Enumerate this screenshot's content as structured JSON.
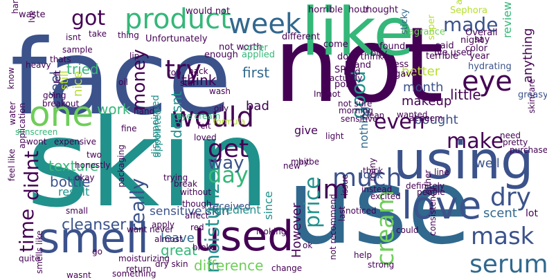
{
  "palette": {
    "dark_purple": "#440154",
    "indigo": "#3b528b",
    "blue": "#31688e",
    "teal": "#21918c",
    "green": "#35b779",
    "light_green": "#6ece58",
    "yellow_green": "#b5de2b",
    "yellow": "#d8e219"
  },
  "words": [
    {
      "text": "face",
      "color": "#3b528b"
    },
    {
      "text": "not",
      "color": "#440154"
    },
    {
      "text": "skin",
      "color": "#21918c"
    },
    {
      "text": "use",
      "color": "#31688e"
    },
    {
      "text": "like",
      "color": "#35b779"
    },
    {
      "text": "one",
      "color": "#6ece58"
    },
    {
      "text": "smell",
      "color": "#3b528b"
    },
    {
      "text": "used",
      "color": "#440154"
    },
    {
      "text": "using",
      "color": "#3b528b"
    },
    {
      "text": "product",
      "color": "#35b779"
    },
    {
      "text": "week",
      "color": "#31688e"
    },
    {
      "text": "love",
      "color": "#3b528b"
    },
    {
      "text": "would",
      "color": "#440154"
    },
    {
      "text": "really",
      "color": "#3b528b"
    },
    {
      "text": "moisturizer",
      "color": "#21918c"
    },
    {
      "text": "cream",
      "color": "#6ece58"
    },
    {
      "text": "day",
      "color": "#35b779"
    },
    {
      "text": "get",
      "color": "#440154"
    },
    {
      "text": "much",
      "color": "#3b528b"
    },
    {
      "text": "Im",
      "color": "#440154"
    },
    {
      "text": "price",
      "color": "#21918c"
    },
    {
      "text": "serum",
      "color": "#31688e"
    },
    {
      "text": "mask",
      "color": "#3b528b"
    },
    {
      "text": "dry",
      "color": "#3b528b"
    },
    {
      "text": "eye",
      "color": "#440154"
    },
    {
      "text": "made",
      "color": "#3b528b"
    },
    {
      "text": "got",
      "color": "#440154"
    },
    {
      "text": "try",
      "color": "#440154"
    },
    {
      "text": "time",
      "color": "#440154"
    },
    {
      "text": "didnt",
      "color": "#440154"
    },
    {
      "text": "money",
      "color": "#440154"
    },
    {
      "text": "even",
      "color": "#440154"
    },
    {
      "text": "make",
      "color": "#440154"
    },
    {
      "text": "good",
      "color": "#21918c"
    },
    {
      "text": "way",
      "color": "#3b528b"
    },
    {
      "text": "feel",
      "color": "#3b528b"
    },
    {
      "text": "cleanser",
      "color": "#3b528b"
    },
    {
      "text": "work",
      "color": "#35b779"
    },
    {
      "text": "tried",
      "color": "#35b779"
    },
    {
      "text": "still",
      "color": "#b5de2b"
    },
    {
      "text": "nice",
      "color": "#b5de2b"
    },
    {
      "text": "think",
      "color": "#440154"
    },
    {
      "text": "first",
      "color": "#31688e"
    },
    {
      "text": "bad",
      "color": "#440154"
    },
    {
      "text": "doesnt",
      "color": "#21918c"
    },
    {
      "text": "texture",
      "color": "#35b779"
    },
    {
      "text": "bottle",
      "color": "#3b528b"
    },
    {
      "text": "sensitive skin",
      "color": "#3b528b"
    },
    {
      "text": "leave",
      "color": "#31688e"
    },
    {
      "text": "great",
      "color": "#35b779"
    },
    {
      "text": "difference",
      "color": "#6ece58"
    },
    {
      "text": "However",
      "color": "#440154"
    },
    {
      "text": "received",
      "color": "#3b528b"
    },
    {
      "text": "month",
      "color": "#3b528b"
    },
    {
      "text": "makeup",
      "color": "#440154"
    },
    {
      "text": "nothing",
      "color": "#31688e"
    },
    {
      "text": "bought",
      "color": "#3b528b"
    },
    {
      "text": "little",
      "color": "#440154"
    },
    {
      "text": "well",
      "color": "#3b528b"
    },
    {
      "text": "scent",
      "color": "#31688e"
    },
    {
      "text": "review",
      "color": "#35b779"
    },
    {
      "text": "better",
      "color": "#b5de2b"
    },
    {
      "text": "anything",
      "color": "#440154"
    },
    {
      "text": "result",
      "color": "#21918c"
    },
    {
      "text": "ingredient",
      "color": "#21918c"
    },
    {
      "text": "look",
      "color": "#3b528b"
    },
    {
      "text": "since",
      "color": "#21918c"
    },
    {
      "text": "lot",
      "color": "#440154"
    },
    {
      "text": "give",
      "color": "#440154"
    },
    {
      "text": "disappointed",
      "color": "#21918c"
    },
    {
      "text": "appointed",
      "color": "#21918c"
    },
    {
      "text": "Unfortunately",
      "color": "#440154"
    },
    {
      "text": "not worth",
      "color": "#440154"
    },
    {
      "text": "different",
      "color": "#440154"
    },
    {
      "text": "would not",
      "color": "#440154"
    },
    {
      "text": "horrible",
      "color": "#440154"
    },
    {
      "text": "hour",
      "color": "#440154"
    },
    {
      "text": "thought",
      "color": "#440154"
    },
    {
      "text": "waste",
      "color": "#440154"
    },
    {
      "text": "Sephora",
      "color": "#b5de2b"
    },
    {
      "text": "around",
      "color": "#b5de2b"
    },
    {
      "text": "fragrance",
      "color": "#6ece58"
    },
    {
      "text": "sticky",
      "color": "#31688e"
    },
    {
      "text": "terrible",
      "color": "#440154"
    },
    {
      "text": "Overall",
      "color": "#440154"
    },
    {
      "text": "night",
      "color": "#440154"
    },
    {
      "text": "Ive used",
      "color": "#440154"
    },
    {
      "text": "color",
      "color": "#440154"
    },
    {
      "text": "year",
      "color": "#440154"
    },
    {
      "text": "say",
      "color": "#440154"
    },
    {
      "text": "said",
      "color": "#440154"
    },
    {
      "text": "come",
      "color": "#440154"
    },
    {
      "text": "found",
      "color": "#440154"
    },
    {
      "text": "buy",
      "color": "#440154"
    },
    {
      "text": "super",
      "color": "#b5de2b"
    },
    {
      "text": "dont think",
      "color": "#440154"
    },
    {
      "text": "enough",
      "color": "#440154"
    },
    {
      "text": "applied",
      "color": "#35b779"
    },
    {
      "text": "coner",
      "color": "#35b779"
    },
    {
      "text": "SPF",
      "color": "#440154"
    },
    {
      "text": "brand",
      "color": "#440154"
    },
    {
      "text": "find",
      "color": "#440154"
    },
    {
      "text": "pore",
      "color": "#440154"
    },
    {
      "text": "gave",
      "color": "#440154"
    },
    {
      "text": "less",
      "color": "#440154"
    },
    {
      "text": "hydrating",
      "color": "#3b528b"
    },
    {
      "text": "greasy",
      "color": "#3b528b"
    },
    {
      "text": "hard",
      "color": "#440154"
    },
    {
      "text": "Ive",
      "color": "#440154"
    },
    {
      "text": "isnt",
      "color": "#440154"
    },
    {
      "text": "sample",
      "color": "#440154"
    },
    {
      "text": "take",
      "color": "#440154"
    },
    {
      "text": "thing",
      "color": "#440154"
    },
    {
      "text": "heavy",
      "color": "#440154"
    },
    {
      "text": "thats",
      "color": "#440154"
    },
    {
      "text": "lip",
      "color": "#440154"
    },
    {
      "text": "top",
      "color": "#440154"
    },
    {
      "text": "back",
      "color": "#440154"
    },
    {
      "text": "star",
      "color": "#440154"
    },
    {
      "text": "oil",
      "color": "#440154"
    },
    {
      "text": "wash",
      "color": "#440154"
    },
    {
      "text": "oily",
      "color": "#440154"
    },
    {
      "text": "Im not",
      "color": "#440154"
    },
    {
      "text": "formula",
      "color": "#b5de2b"
    },
    {
      "text": "not sure",
      "color": "#440154"
    },
    {
      "text": "morning",
      "color": "#440154"
    },
    {
      "text": "wanted",
      "color": "#440154"
    },
    {
      "text": "seem",
      "color": "#440154"
    },
    {
      "text": "skincare",
      "color": "#440154"
    },
    {
      "text": "know",
      "color": "#440154"
    },
    {
      "text": "breakout",
      "color": "#440154"
    },
    {
      "text": "water",
      "color": "#440154"
    },
    {
      "text": "left",
      "color": "#440154"
    },
    {
      "text": "going",
      "color": "#440154"
    },
    {
      "text": "fine",
      "color": "#440154"
    },
    {
      "text": "sunscreen",
      "color": "#35b779"
    },
    {
      "text": "expensive",
      "color": "#440154"
    },
    {
      "text": "wont",
      "color": "#440154"
    },
    {
      "text": "application",
      "color": "#440154"
    },
    {
      "text": "two",
      "color": "#440154"
    },
    {
      "text": "honestly",
      "color": "#440154"
    },
    {
      "text": "okay",
      "color": "#440154"
    },
    {
      "text": "feel like",
      "color": "#440154"
    },
    {
      "text": "packaging",
      "color": "#440154"
    },
    {
      "text": "small",
      "color": "#440154"
    },
    {
      "text": "hand",
      "color": "#440154"
    },
    {
      "text": "eye cream",
      "color": "#35b779"
    },
    {
      "text": "felt",
      "color": "#440154"
    },
    {
      "text": "loved",
      "color": "#440154"
    },
    {
      "text": "trying",
      "color": "#440154"
    },
    {
      "text": "break",
      "color": "#440154"
    },
    {
      "text": "without",
      "color": "#440154"
    },
    {
      "text": "though",
      "color": "#440154"
    },
    {
      "text": "apply",
      "color": "#440154"
    },
    {
      "text": "never",
      "color": "#440154"
    },
    {
      "text": "red",
      "color": "#440154"
    },
    {
      "text": "affect",
      "color": "#440154"
    },
    {
      "text": "want",
      "color": "#440154"
    },
    {
      "text": "almost",
      "color": "#440154"
    },
    {
      "text": "broke",
      "color": "#440154"
    },
    {
      "text": "go",
      "color": "#440154"
    },
    {
      "text": "moisturizing",
      "color": "#440154"
    },
    {
      "text": "something",
      "color": "#440154"
    },
    {
      "text": "dry skin",
      "color": "#440154"
    },
    {
      "text": "return",
      "color": "#440154"
    },
    {
      "text": "wasnt",
      "color": "#440154"
    },
    {
      "text": "quite",
      "color": "#440154"
    },
    {
      "text": "smells like",
      "color": "#440154"
    },
    {
      "text": "looking",
      "color": "#440154"
    },
    {
      "text": "change",
      "color": "#440154"
    },
    {
      "text": "help",
      "color": "#440154"
    },
    {
      "text": "strong",
      "color": "#440154"
    },
    {
      "text": "consistency",
      "color": "#440154"
    },
    {
      "text": "could",
      "color": "#440154"
    },
    {
      "text": "noticed",
      "color": "#440154"
    },
    {
      "text": "not recommend",
      "color": "#440154"
    },
    {
      "text": "new",
      "color": "#440154"
    },
    {
      "text": "maybe",
      "color": "#440154"
    },
    {
      "text": "ok",
      "color": "#440154"
    },
    {
      "text": "last",
      "color": "#440154"
    },
    {
      "text": "issue",
      "color": "#440154"
    },
    {
      "text": "bit",
      "color": "#440154"
    },
    {
      "text": "many",
      "color": "#440154"
    },
    {
      "text": "instead",
      "color": "#440154"
    },
    {
      "text": "excited",
      "color": "#440154"
    },
    {
      "text": "thick",
      "color": "#440154"
    },
    {
      "text": "line",
      "color": "#440154"
    },
    {
      "text": "either",
      "color": "#440154"
    },
    {
      "text": "definitely",
      "color": "#440154"
    },
    {
      "text": "people",
      "color": "#440154"
    },
    {
      "text": "light",
      "color": "#440154"
    },
    {
      "text": "clean",
      "color": "#440154"
    },
    {
      "text": "acne",
      "color": "#440154"
    },
    {
      "text": "sensitive",
      "color": "#440154"
    },
    {
      "text": "actually",
      "color": "#440154"
    },
    {
      "text": "need",
      "color": "#440154"
    },
    {
      "text": "pretty",
      "color": "#440154"
    },
    {
      "text": "purchased",
      "color": "#440154"
    }
  ]
}
